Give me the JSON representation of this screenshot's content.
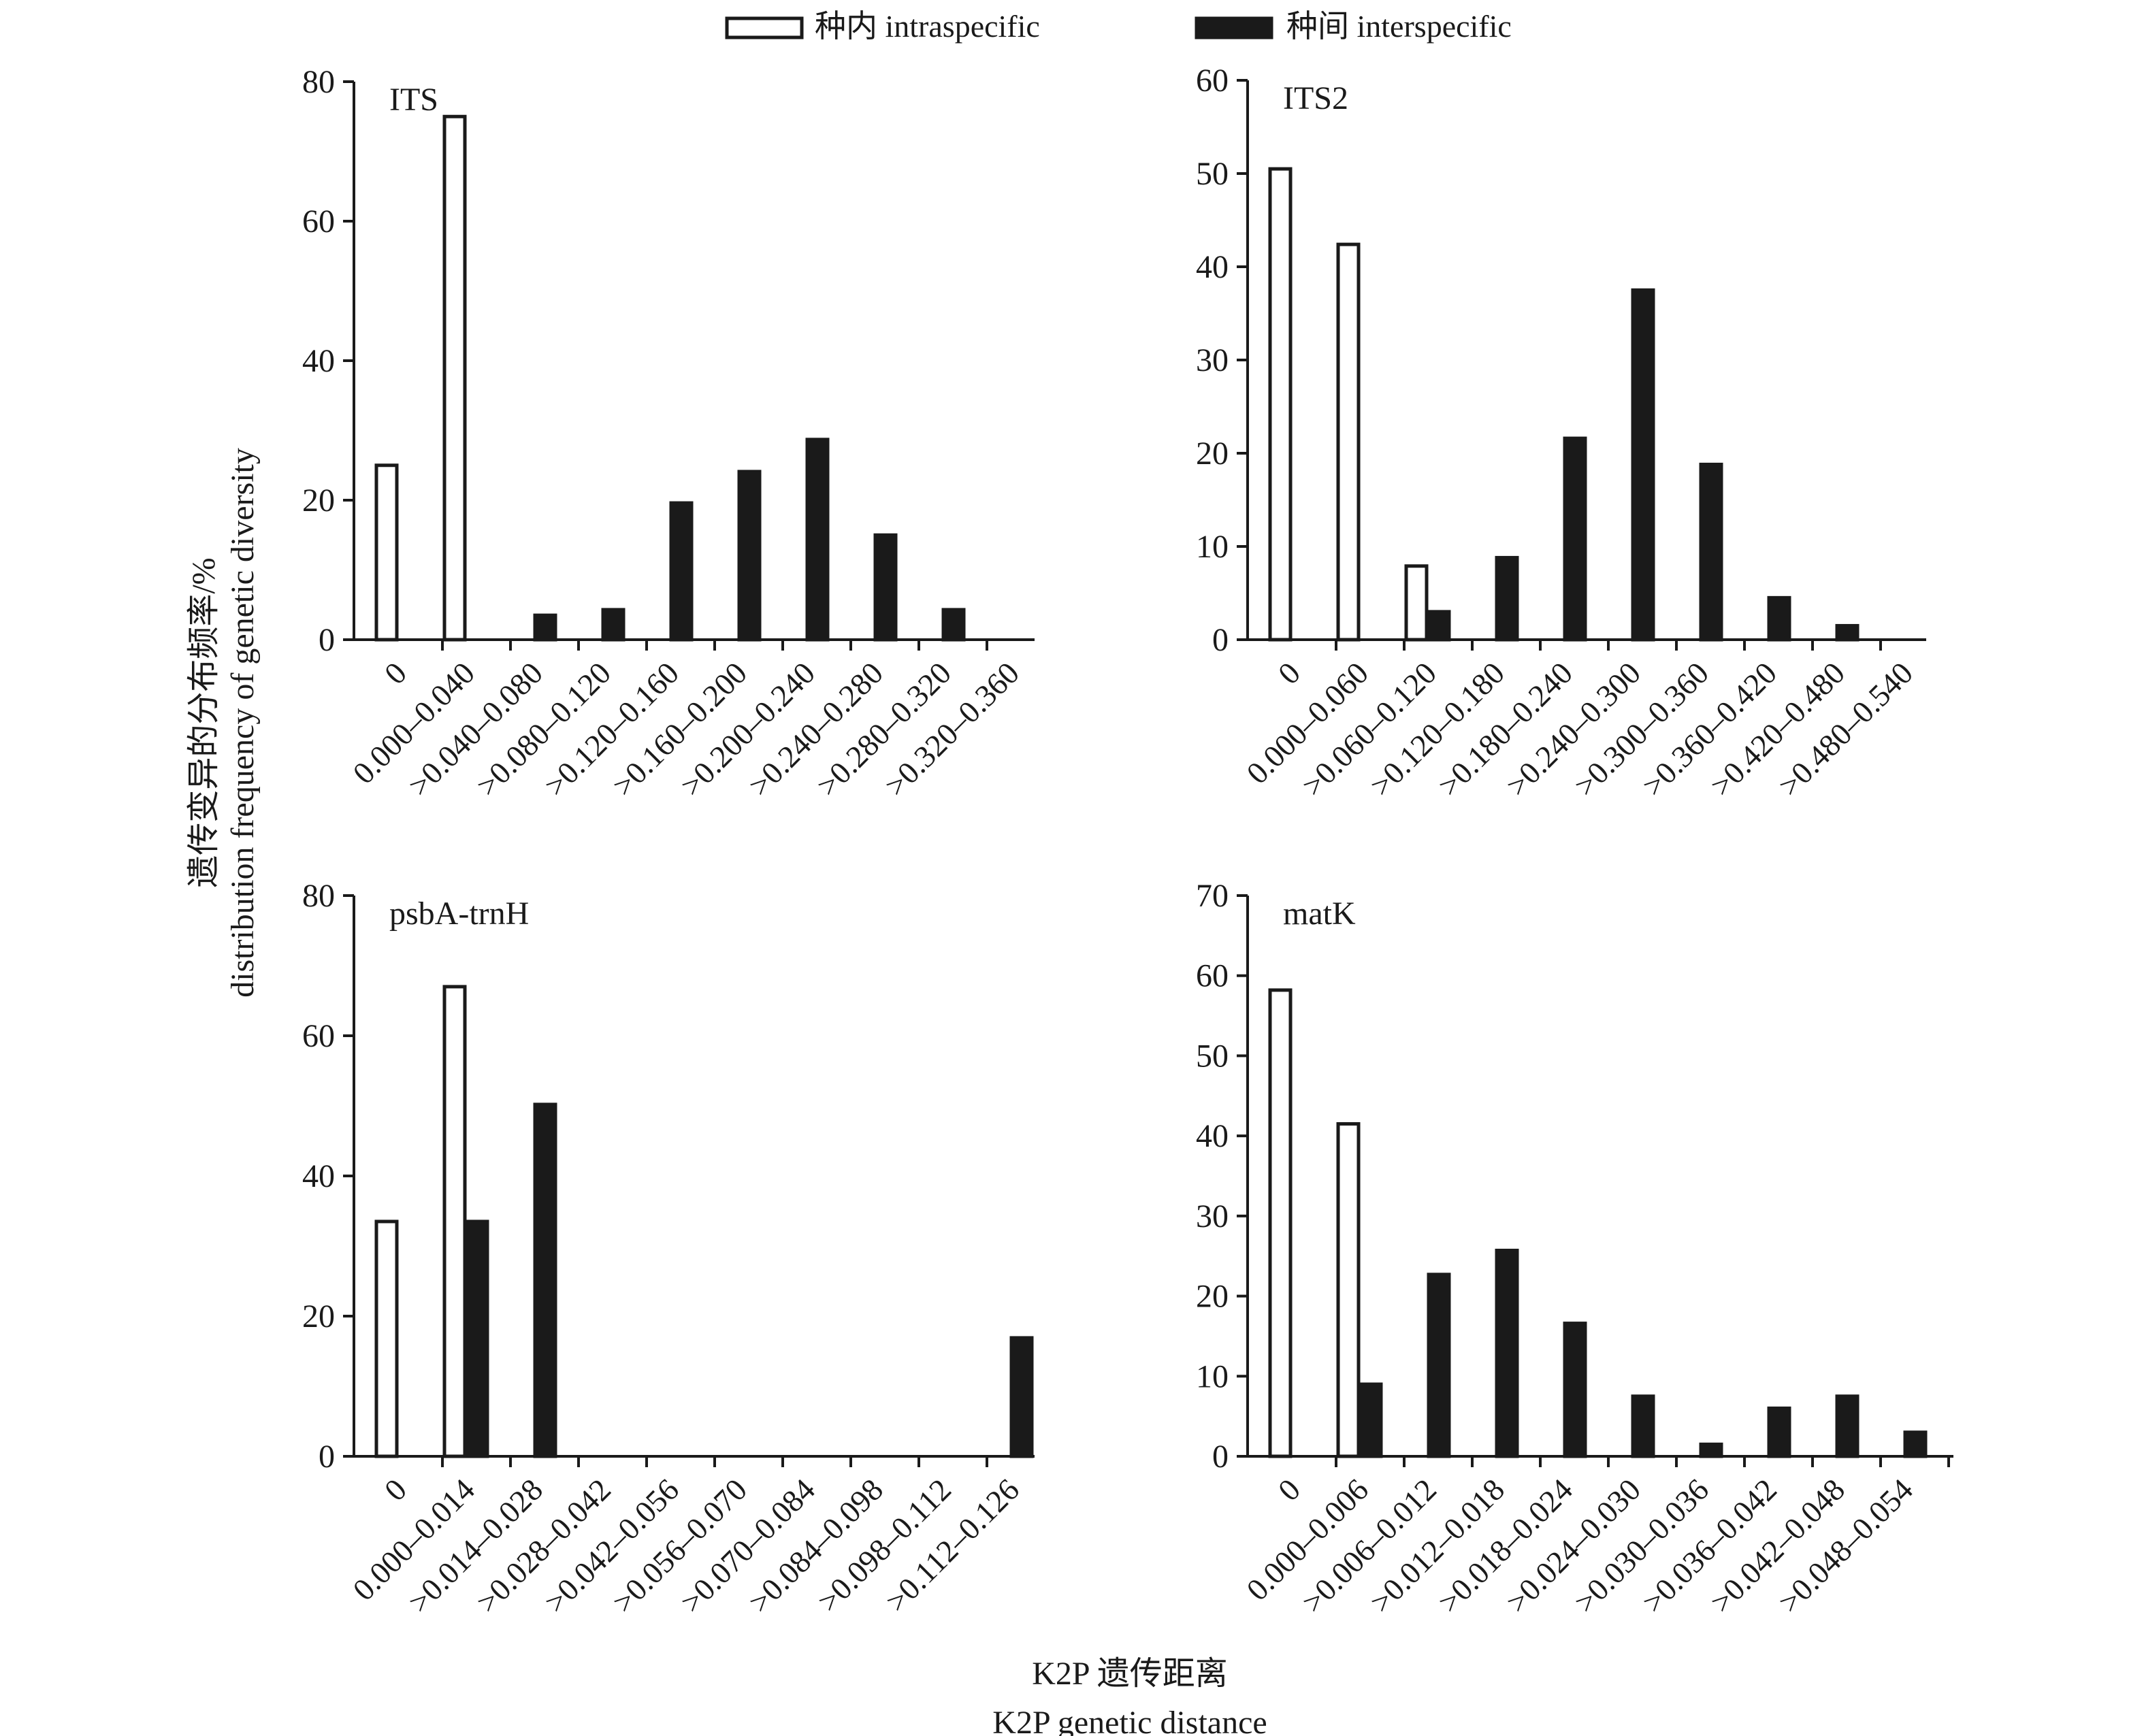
{
  "legend": {
    "intraspecific": "种内 intraspecific",
    "interspecific": "种间 interspecific"
  },
  "axis_titles": {
    "y_zh": "遗传变异的分布频率/%",
    "y_en": "distribution frequency of genetic diversity",
    "x_zh": "K2P 遗传距离",
    "x_en": "K2P genetic distance"
  },
  "colors": {
    "intraspecific": "#ffffff",
    "interspecific": "#1a1a1a",
    "axis": "#1a1a1a"
  },
  "chart_data": [
    {
      "type": "bar",
      "title": "ITS",
      "categories": [
        "0",
        "0.000–0.040",
        ">0.040–0.080",
        ">0.080–0.120",
        ">0.120–0.160",
        ">0.160–0.200",
        ">0.200–0.240",
        ">0.240–0.280",
        ">0.280–0.320",
        ">0.320–0.360"
      ],
      "series": [
        {
          "name": "种内 intraspecific",
          "values": [
            25,
            75,
            0,
            0,
            0,
            0,
            0,
            0,
            0,
            0
          ]
        },
        {
          "name": "种间 interspecific",
          "values": [
            0,
            0,
            3.5,
            4.3,
            19.6,
            24.1,
            28.7,
            15,
            4.3,
            0
          ]
        }
      ],
      "ylim": [
        0,
        80
      ],
      "yticks": [
        0,
        20,
        40,
        60,
        80
      ]
    },
    {
      "type": "bar",
      "title": "ITS2",
      "categories": [
        "0",
        "0.000–0.060",
        ">0.060–0.120",
        ">0.120–0.180",
        ">0.180–0.240",
        ">0.240–0.300",
        ">0.300–0.360",
        ">0.360–0.420",
        ">0.420–0.480",
        ">0.480–0.540"
      ],
      "series": [
        {
          "name": "种内 intraspecific",
          "values": [
            50.5,
            42.4,
            7.9,
            0,
            0,
            0,
            0,
            0,
            0,
            0
          ]
        },
        {
          "name": "种间 interspecific",
          "values": [
            0,
            0,
            3,
            8.8,
            21.6,
            37.5,
            18.8,
            4.5,
            1.5,
            0
          ]
        }
      ],
      "ylim": [
        0,
        60
      ],
      "yticks": [
        0,
        10,
        20,
        30,
        40,
        50,
        60
      ]
    },
    {
      "type": "bar",
      "title": "psbA-trnH",
      "categories": [
        "0",
        "0.000–0.014",
        ">0.014–0.028",
        ">0.028–0.042",
        ">0.042–0.056",
        ">0.056–0.070",
        ">0.070–0.084",
        ">0.084–0.098",
        ">0.098–0.112",
        ">0.112–0.126"
      ],
      "series": [
        {
          "name": "种内 intraspecific",
          "values": [
            33.5,
            67,
            0,
            0,
            0,
            0,
            0,
            0,
            0,
            0
          ]
        },
        {
          "name": "种间 interspecific",
          "values": [
            0,
            33.5,
            50.2,
            0,
            0,
            0,
            0,
            0,
            0,
            16.9
          ]
        }
      ],
      "ylim": [
        0,
        80
      ],
      "yticks": [
        0,
        20,
        40,
        60,
        80
      ]
    },
    {
      "type": "bar",
      "title": "matK",
      "categories": [
        "0",
        "0.000–0.006",
        ">0.006–0.012",
        ">0.012–0.018",
        ">0.018–0.024",
        ">0.024–0.030",
        ">0.030–0.036",
        ">0.036–0.042",
        ">0.042–0.048",
        ">0.048–0.054"
      ],
      "series": [
        {
          "name": "种内 intraspecific",
          "values": [
            58.2,
            41.5,
            0,
            0,
            0,
            0,
            0,
            0,
            0,
            0
          ]
        },
        {
          "name": "种间 interspecific",
          "values": [
            0,
            9,
            22.7,
            25.7,
            16.6,
            7.5,
            1.5,
            6,
            7.5,
            3
          ]
        }
      ],
      "ylim": [
        0,
        70
      ],
      "yticks": [
        0,
        10,
        20,
        30,
        40,
        50,
        60,
        70
      ]
    }
  ]
}
